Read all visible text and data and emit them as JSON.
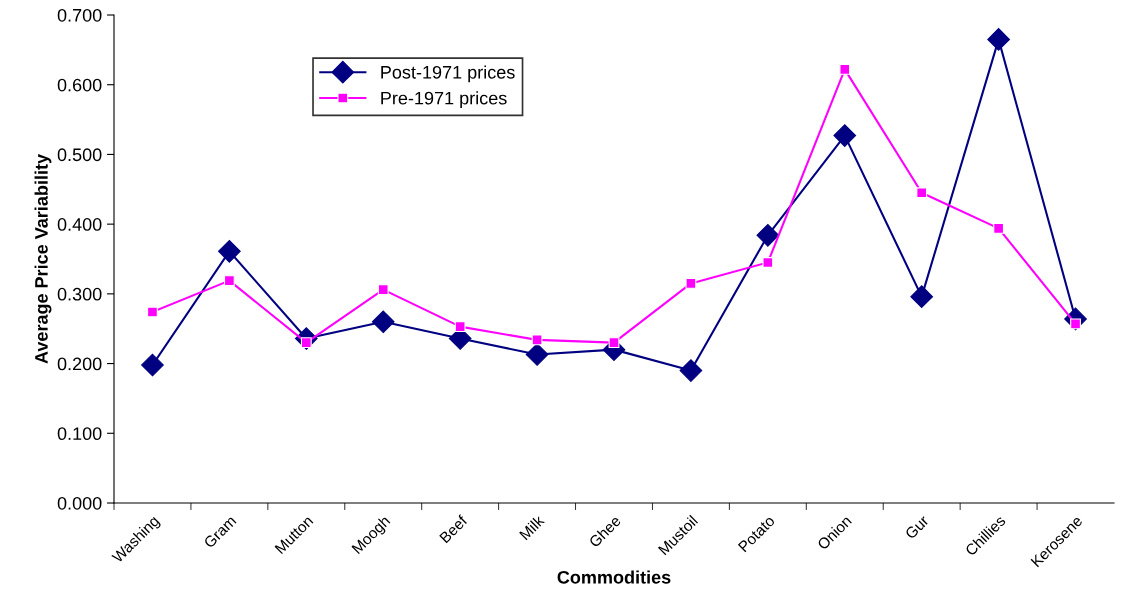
{
  "chart_data": {
    "type": "line",
    "xlabel": "Commodities",
    "ylabel": "Average Price Variability",
    "categories": [
      "Washing",
      "Gram",
      "Mutton",
      "Moogh",
      "Beef",
      "Milk",
      "Ghee",
      "Mustoil",
      "Potato",
      "Onion",
      "Gur",
      "Chillies",
      "Kerosene"
    ],
    "series": [
      {
        "name": "Post-1971 prices",
        "color": "#000080",
        "marker": "diamond",
        "values": [
          0.198,
          0.361,
          0.236,
          0.26,
          0.236,
          0.213,
          0.22,
          0.19,
          0.384,
          0.527,
          0.296,
          0.665,
          0.264
        ]
      },
      {
        "name": "Pre-1971 prices",
        "color": "#ff00ff",
        "marker": "square",
        "values": [
          0.274,
          0.319,
          0.23,
          0.306,
          0.253,
          0.234,
          0.23,
          0.315,
          0.345,
          0.622,
          0.445,
          0.394,
          0.257
        ]
      }
    ],
    "ylim": [
      0,
      0.7
    ],
    "yticks": [
      {
        "value": 0,
        "label": "0.000"
      },
      {
        "value": 0.1,
        "label": "0.100"
      },
      {
        "value": 0.2,
        "label": "0.200"
      },
      {
        "value": 0.3,
        "label": "0.300"
      },
      {
        "value": 0.4,
        "label": "0.400"
      },
      {
        "value": 0.5,
        "label": "0.500"
      },
      {
        "value": 0.6,
        "label": "0.600"
      },
      {
        "value": 0.7,
        "label": "0.700"
      }
    ],
    "grid": false,
    "legend": "top left"
  }
}
